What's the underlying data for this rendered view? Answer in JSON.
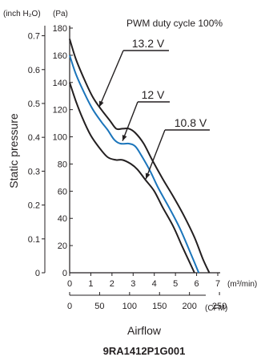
{
  "chart_data": {
    "type": "line",
    "title": "",
    "annotation": "PWM duty cycle 100%",
    "xlabel": "Airflow",
    "ylabel": "Static pressure",
    "model": "9RA1412P1G001",
    "x_primary_unit": "(m³/min)",
    "x_secondary_unit": "(CFM)",
    "y_primary_unit": "(Pa)",
    "y_secondary_unit": "(inch H₂O)",
    "x_ticks": [
      0,
      1,
      2,
      3,
      4,
      5,
      6,
      7
    ],
    "x_secondary_ticks": [
      0,
      50,
      100,
      150,
      200,
      250
    ],
    "y_ticks": [
      0,
      20,
      40,
      60,
      80,
      100,
      120,
      140,
      160,
      180
    ],
    "y_secondary_ticks": [
      0,
      0.1,
      0.2,
      0.3,
      0.4,
      0.5,
      0.6,
      0.7
    ],
    "xlim": [
      0,
      7
    ],
    "ylim": [
      0,
      180
    ],
    "grid": false,
    "series": [
      {
        "name": "13.2 V",
        "color": "#231f20",
        "x": [
          0,
          0.3,
          0.7,
          1.1,
          1.5,
          1.9,
          2.2,
          2.5,
          2.8,
          3.1,
          3.5,
          3.9,
          4.4,
          4.9,
          5.4,
          5.9,
          6.3,
          6.6
        ],
        "y": [
          172,
          157,
          142,
          129,
          120,
          112,
          106,
          106,
          106,
          103,
          95,
          83,
          69,
          56,
          42,
          26,
          10,
          0
        ]
      },
      {
        "name": "12 V",
        "color": "#1b75bb",
        "x": [
          0,
          0.3,
          0.7,
          1.1,
          1.5,
          1.8,
          2.1,
          2.4,
          2.8,
          3.1,
          3.4,
          3.8,
          4.2,
          4.7,
          5.2,
          5.7,
          6.1
        ],
        "y": [
          160,
          146,
          132,
          120,
          111,
          105,
          98,
          95,
          95,
          93,
          86,
          75,
          62,
          48,
          33,
          15,
          0
        ]
      },
      {
        "name": "10.8 V",
        "color": "#231f20",
        "x": [
          0,
          0.3,
          0.6,
          1.0,
          1.4,
          1.8,
          2.2,
          2.5,
          2.9,
          3.2,
          3.6,
          4.0,
          4.4,
          4.9,
          5.3,
          5.6,
          5.9
        ],
        "y": [
          140,
          126,
          114,
          101,
          92,
          85,
          83,
          83,
          80,
          76,
          68,
          60,
          48,
          34,
          20,
          10,
          0
        ]
      }
    ],
    "series_labels": [
      "13.2 V",
      "12 V",
      "10.8 V"
    ]
  }
}
